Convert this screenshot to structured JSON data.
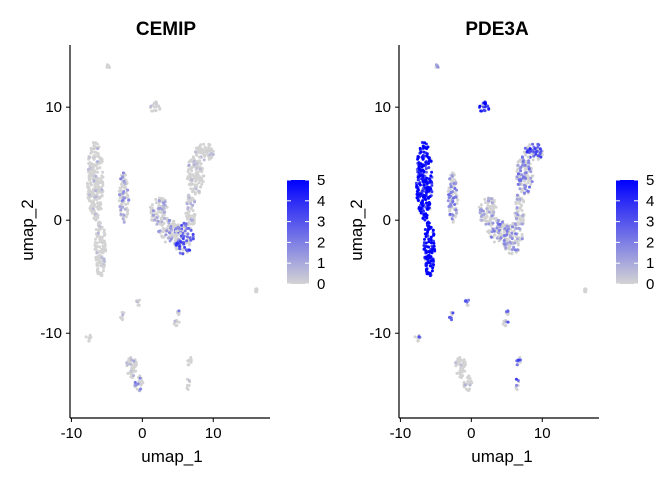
{
  "chart_data": [
    {
      "type": "scatter",
      "title": "CEMIP",
      "xlabel": "umap_1",
      "ylabel": "umap_2",
      "xlim": [
        -10.2,
        18
      ],
      "ylim": [
        -17.5,
        15.5
      ],
      "x_ticks": [
        -10,
        0,
        10
      ],
      "y_ticks": [
        -10,
        0,
        10
      ],
      "legend": {
        "placement": "right",
        "ticks": [
          5,
          4,
          3,
          2,
          1,
          0
        ],
        "low_color": "#d3d3d3",
        "high_color": "#0000ff",
        "range": [
          0,
          5
        ]
      },
      "clusters": [
        {
          "cx": -6.6,
          "cy": 3.5,
          "rx": 1.2,
          "ry": 3.5,
          "mean_expr": 0.05
        },
        {
          "cx": -5.9,
          "cy": -2.5,
          "rx": 0.8,
          "ry": 2.5,
          "mean_expr": 0.05
        },
        {
          "cx": -2.6,
          "cy": 2.0,
          "rx": 0.7,
          "ry": 2.2,
          "mean_expr": 0.8
        },
        {
          "cx": 1.8,
          "cy": 10.0,
          "rx": 0.7,
          "ry": 0.5,
          "mean_expr": 0.05
        },
        {
          "cx": 8.8,
          "cy": 6.0,
          "rx": 1.4,
          "ry": 0.8,
          "mean_expr": 0.05
        },
        {
          "cx": 7.5,
          "cy": 4.0,
          "rx": 1.2,
          "ry": 1.8,
          "mean_expr": 0.2
        },
        {
          "cx": 2.4,
          "cy": 0.8,
          "rx": 1.4,
          "ry": 1.2,
          "mean_expr": 0.6
        },
        {
          "cx": 5.8,
          "cy": -1.6,
          "rx": 1.4,
          "ry": 1.4,
          "mean_expr": 2.0
        },
        {
          "cx": 3.8,
          "cy": -1.0,
          "rx": 1.6,
          "ry": 1.0,
          "mean_expr": 0.9
        },
        {
          "cx": 6.8,
          "cy": 0.8,
          "rx": 0.7,
          "ry": 1.6,
          "mean_expr": 0.3
        },
        {
          "cx": -4.8,
          "cy": 13.6,
          "rx": 0.2,
          "ry": 0.2,
          "mean_expr": 0.0
        },
        {
          "cx": -0.6,
          "cy": -7.2,
          "rx": 0.3,
          "ry": 0.4,
          "mean_expr": 0.1
        },
        {
          "cx": -2.8,
          "cy": -8.5,
          "rx": 0.4,
          "ry": 0.4,
          "mean_expr": 0.1
        },
        {
          "cx": 5.1,
          "cy": -8.2,
          "rx": 0.2,
          "ry": 0.2,
          "mean_expr": 1.5
        },
        {
          "cx": 4.8,
          "cy": -9.0,
          "rx": 0.4,
          "ry": 0.4,
          "mean_expr": 0.1
        },
        {
          "cx": -7.6,
          "cy": -10.4,
          "rx": 0.4,
          "ry": 0.3,
          "mean_expr": 0.0
        },
        {
          "cx": -1.5,
          "cy": -13.0,
          "rx": 0.8,
          "ry": 1.0,
          "mean_expr": 0.3
        },
        {
          "cx": -0.5,
          "cy": -14.4,
          "rx": 0.6,
          "ry": 0.7,
          "mean_expr": 1.2
        },
        {
          "cx": 6.7,
          "cy": -12.5,
          "rx": 0.4,
          "ry": 0.4,
          "mean_expr": 0.05
        },
        {
          "cx": 6.4,
          "cy": -14.5,
          "rx": 0.3,
          "ry": 0.5,
          "mean_expr": 0.05
        },
        {
          "cx": 16.0,
          "cy": -6.2,
          "rx": 0.2,
          "ry": 0.2,
          "mean_expr": 0.0
        }
      ]
    },
    {
      "type": "scatter",
      "title": "PDE3A",
      "xlabel": "umap_1",
      "ylabel": "umap_2",
      "xlim": [
        -10.2,
        18
      ],
      "ylim": [
        -17.5,
        15.5
      ],
      "x_ticks": [
        -10,
        0,
        10
      ],
      "y_ticks": [
        -10,
        0,
        10
      ],
      "legend": {
        "placement": "right",
        "ticks": [
          5,
          4,
          3,
          2,
          1,
          0
        ],
        "low_color": "#d3d3d3",
        "high_color": "#0000ff",
        "range": [
          0,
          5
        ]
      },
      "clusters": [
        {
          "cx": -6.6,
          "cy": 3.5,
          "rx": 1.2,
          "ry": 3.5,
          "mean_expr": 3.8
        },
        {
          "cx": -5.9,
          "cy": -2.5,
          "rx": 0.8,
          "ry": 2.5,
          "mean_expr": 4.0
        },
        {
          "cx": -2.6,
          "cy": 2.0,
          "rx": 0.7,
          "ry": 2.2,
          "mean_expr": 1.2
        },
        {
          "cx": 1.8,
          "cy": 10.0,
          "rx": 0.7,
          "ry": 0.5,
          "mean_expr": 3.5
        },
        {
          "cx": 8.8,
          "cy": 6.0,
          "rx": 1.4,
          "ry": 0.8,
          "mean_expr": 2.2
        },
        {
          "cx": 7.5,
          "cy": 4.0,
          "rx": 1.2,
          "ry": 1.8,
          "mean_expr": 1.3
        },
        {
          "cx": 2.4,
          "cy": 0.8,
          "rx": 1.4,
          "ry": 1.2,
          "mean_expr": 0.6
        },
        {
          "cx": 5.8,
          "cy": -1.6,
          "rx": 1.4,
          "ry": 1.4,
          "mean_expr": 1.0
        },
        {
          "cx": 3.8,
          "cy": -1.0,
          "rx": 1.6,
          "ry": 1.0,
          "mean_expr": 1.2
        },
        {
          "cx": 6.8,
          "cy": 0.8,
          "rx": 0.7,
          "ry": 1.6,
          "mean_expr": 0.6
        },
        {
          "cx": -4.8,
          "cy": 13.6,
          "rx": 0.2,
          "ry": 0.2,
          "mean_expr": 1.0
        },
        {
          "cx": -0.6,
          "cy": -7.2,
          "rx": 0.3,
          "ry": 0.4,
          "mean_expr": 2.0
        },
        {
          "cx": -2.8,
          "cy": -8.5,
          "rx": 0.4,
          "ry": 0.4,
          "mean_expr": 2.0
        },
        {
          "cx": 5.1,
          "cy": -8.2,
          "rx": 0.2,
          "ry": 0.2,
          "mean_expr": 2.0
        },
        {
          "cx": 4.8,
          "cy": -9.0,
          "rx": 0.4,
          "ry": 0.4,
          "mean_expr": 1.5
        },
        {
          "cx": -7.6,
          "cy": -10.4,
          "rx": 0.4,
          "ry": 0.3,
          "mean_expr": 2.0
        },
        {
          "cx": -1.5,
          "cy": -13.0,
          "rx": 0.8,
          "ry": 1.0,
          "mean_expr": 0.2
        },
        {
          "cx": -0.5,
          "cy": -14.4,
          "rx": 0.6,
          "ry": 0.7,
          "mean_expr": 0.2
        },
        {
          "cx": 6.7,
          "cy": -12.5,
          "rx": 0.4,
          "ry": 0.4,
          "mean_expr": 2.5
        },
        {
          "cx": 6.4,
          "cy": -14.5,
          "rx": 0.3,
          "ry": 0.5,
          "mean_expr": 2.0
        },
        {
          "cx": 16.0,
          "cy": -6.2,
          "rx": 0.2,
          "ry": 0.2,
          "mean_expr": 0.0
        }
      ]
    }
  ]
}
